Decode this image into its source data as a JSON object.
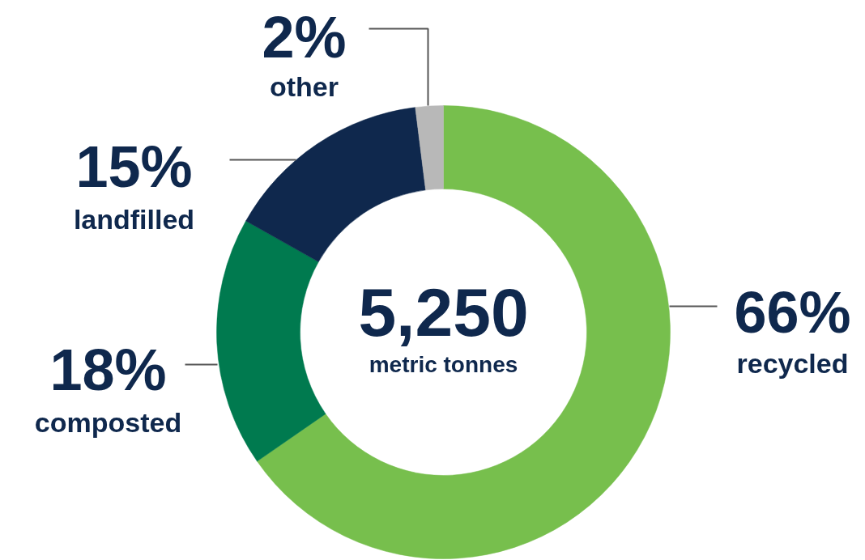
{
  "chart_data": {
    "type": "donut",
    "categories": [
      "recycled",
      "composted",
      "landfilled",
      "other"
    ],
    "values": [
      66,
      18,
      15,
      2
    ],
    "colors": [
      "#77bf4d",
      "#007a4f",
      "#0f284d",
      "#b8b8b8"
    ],
    "value_labels": [
      "66%",
      "18%",
      "15%",
      "2%"
    ],
    "annotations": [
      "5,250",
      "metric tonnes"
    ],
    "legend": false
  }
}
